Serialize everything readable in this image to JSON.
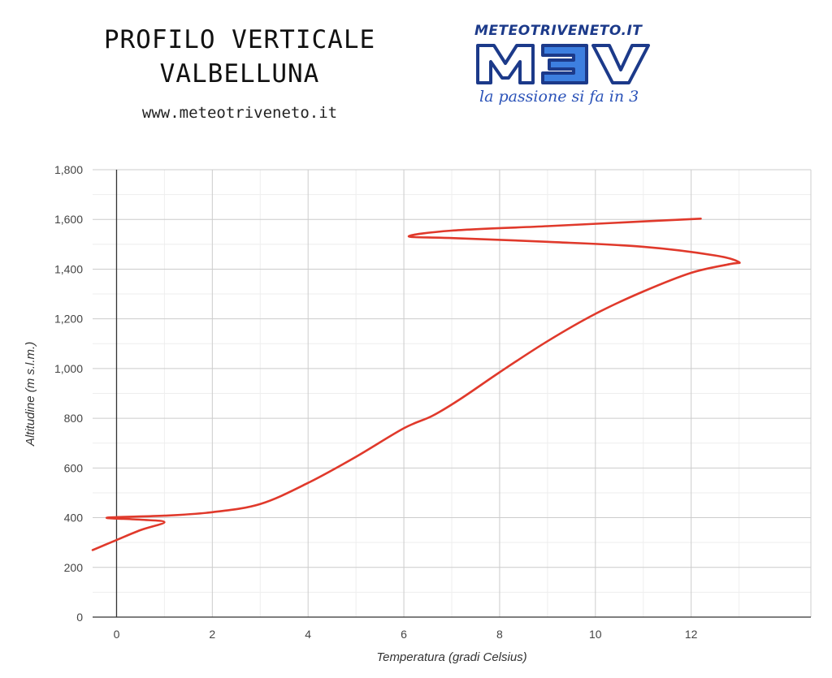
{
  "header": {
    "title_line1": "PROFILO VERTICALE",
    "title_line2": "VALBELLUNA",
    "website": "www.meteotriveneto.it"
  },
  "logo": {
    "url_text": "METEOTRIVENETO.IT",
    "mark_text": "M3V",
    "tagline": "la passione si fa in 3",
    "colors": {
      "dark": "#1c3a8a",
      "light": "#3d7fe0"
    }
  },
  "chart_data": {
    "type": "line",
    "title": "",
    "xlabel": "Temperatura (gradi Celsius)",
    "ylabel": "Altitudine (m s.l.m.)",
    "xlim": [
      -0.5,
      14.5
    ],
    "ylim": [
      0,
      1800
    ],
    "xticks": [
      0,
      2,
      4,
      6,
      8,
      10,
      12
    ],
    "xtick_labels": [
      "0",
      "2",
      "4",
      "6",
      "8",
      "10",
      "12"
    ],
    "yticks": [
      0,
      200,
      400,
      600,
      800,
      1000,
      1200,
      1400,
      1600,
      1800
    ],
    "ytick_labels": [
      "0",
      "200",
      "400",
      "600",
      "800",
      "1,000",
      "1,200",
      "1,400",
      "1,600",
      "1,800"
    ],
    "grid": true,
    "line_color": "#e0392b",
    "series": [
      {
        "points": [
          [
            -0.5,
            270
          ],
          [
            0.0,
            310
          ],
          [
            0.5,
            350
          ],
          [
            1.0,
            382
          ],
          [
            0.5,
            392
          ],
          [
            -0.2,
            400
          ],
          [
            1.0,
            408
          ],
          [
            2.0,
            422
          ],
          [
            3.0,
            455
          ],
          [
            4.0,
            540
          ],
          [
            5.0,
            645
          ],
          [
            6.0,
            760
          ],
          [
            6.6,
            810
          ],
          [
            7.2,
            880
          ],
          [
            8.0,
            985
          ],
          [
            9.0,
            1110
          ],
          [
            10.0,
            1220
          ],
          [
            11.0,
            1310
          ],
          [
            12.0,
            1385
          ],
          [
            12.8,
            1420
          ],
          [
            13.0,
            1428
          ],
          [
            12.5,
            1455
          ],
          [
            11.0,
            1490
          ],
          [
            9.0,
            1510
          ],
          [
            7.0,
            1525
          ],
          [
            6.1,
            1532
          ],
          [
            7.0,
            1555
          ],
          [
            9.0,
            1573
          ],
          [
            11.0,
            1592
          ],
          [
            12.2,
            1603
          ]
        ]
      }
    ]
  }
}
